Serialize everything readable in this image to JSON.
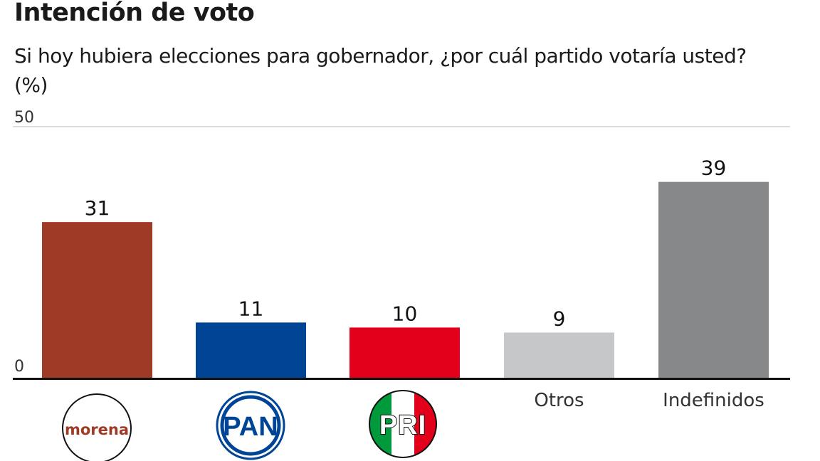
{
  "chart_data": {
    "type": "bar",
    "title": "Intención de voto",
    "subtitle": "Si hoy hubiera elecciones para gobernador, ¿por cuál partido votaría usted? (%)",
    "categories": [
      "morena",
      "PAN",
      "PRI",
      "Otros",
      "Indefinidos"
    ],
    "values": [
      31,
      11,
      10,
      9,
      39
    ],
    "colors": [
      "#9e3a26",
      "#004495",
      "#e2001a",
      "#c6c7c8",
      "#87888a"
    ],
    "ylim": [
      0,
      50
    ],
    "yticks": [
      "0",
      "50"
    ],
    "category_labels_shown_as_logos": [
      "morena",
      "PAN",
      "PRI"
    ],
    "grid": false,
    "legend": "none"
  }
}
